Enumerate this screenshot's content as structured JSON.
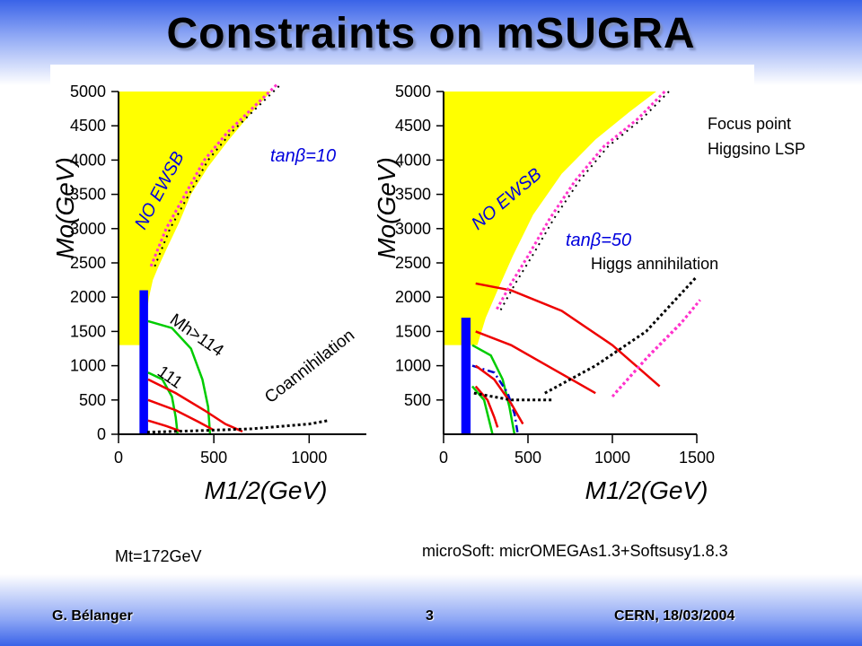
{
  "slide": {
    "title": "Constraints on mSUGRA",
    "mt_note": "Mt=172GeV",
    "software_note": "microSoft: micrOMEGAs1.3+Softsusy1.8.3",
    "footer_author": "G. Bélanger",
    "footer_page": "3",
    "footer_venue": "CERN, 18/03/2004"
  },
  "annotations": {
    "focus_point": "Focus point",
    "higgsino": "Higgsino LSP",
    "higgs_annihilation": "Higgs annihilation",
    "coannihilation": "Coannihilation",
    "mh114": "Mh>114",
    "mh111": "111"
  },
  "colors": {
    "no_ewsb": "#ffff00",
    "lep_excluded": "#0000ff",
    "higgs_limit": "#00cc00",
    "relic_contour": "#ee0000",
    "dm_band_magenta": "#ff33cc",
    "dm_band_black": "#000000",
    "blue_dashdot": "#0000cc"
  },
  "chart_data": [
    {
      "type": "scatter",
      "xlabel": "M1/2(GeV)",
      "ylabel": "Mo(GeV)",
      "xlim": [
        0,
        1300
      ],
      "ylim": [
        0,
        5000
      ],
      "xticks": [
        "0",
        "500",
        "1000"
      ],
      "yticks": [
        "0",
        "500",
        "1000",
        "1500",
        "2000",
        "2500",
        "3000",
        "3500",
        "4000",
        "4500",
        "5000"
      ],
      "labels": {
        "region": "NO EWSB",
        "tanb": "tanβ=10"
      },
      "no_ewsb_boundary": [
        [
          0,
          5000
        ],
        [
          800,
          5000
        ],
        [
          700,
          4700
        ],
        [
          580,
          4300
        ],
        [
          470,
          3900
        ],
        [
          380,
          3500
        ],
        [
          320,
          3100
        ],
        [
          260,
          2750
        ],
        [
          210,
          2450
        ],
        [
          180,
          2250
        ],
        [
          160,
          2000
        ],
        [
          145,
          1700
        ],
        [
          130,
          1300
        ],
        [
          0,
          1300
        ]
      ],
      "lep_excluded": [
        [
          110,
          0
        ],
        [
          155,
          0
        ],
        [
          155,
          2100
        ],
        [
          110,
          2100
        ]
      ],
      "higgs_contours": [
        {
          "name": "Mh>114",
          "points": [
            [
              155,
              1650
            ],
            [
              280,
              1550
            ],
            [
              380,
              1250
            ],
            [
              440,
              800
            ],
            [
              470,
              400
            ],
            [
              480,
              0
            ]
          ]
        },
        {
          "name": "111",
          "points": [
            [
              155,
              900
            ],
            [
              230,
              800
            ],
            [
              280,
              550
            ],
            [
              300,
              250
            ],
            [
              310,
              0
            ]
          ]
        }
      ],
      "relic_contours": [
        {
          "points": [
            [
              155,
              800
            ],
            [
              300,
              600
            ],
            [
              450,
              350
            ],
            [
              560,
              150
            ],
            [
              650,
              40
            ]
          ]
        },
        {
          "points": [
            [
              155,
              500
            ],
            [
              300,
              350
            ],
            [
              420,
              180
            ],
            [
              500,
              60
            ]
          ]
        },
        {
          "points": [
            [
              155,
              200
            ],
            [
              250,
              120
            ],
            [
              330,
              40
            ]
          ]
        }
      ],
      "dm_band": [
        [
          170,
          2450
        ],
        [
          250,
          3000
        ],
        [
          350,
          3500
        ],
        [
          450,
          4000
        ],
        [
          570,
          4400
        ],
        [
          700,
          4750
        ],
        [
          830,
          5100
        ]
      ],
      "coannihilation_band": [
        [
          150,
          30
        ],
        [
          400,
          50
        ],
        [
          700,
          80
        ],
        [
          1000,
          150
        ],
        [
          1100,
          200
        ]
      ]
    },
    {
      "type": "scatter",
      "xlabel": "M1/2(GeV)",
      "ylabel": "Mo(GeV)",
      "xlim": [
        0,
        1500
      ],
      "ylim": [
        0,
        5000
      ],
      "xticks": [
        "0",
        "500",
        "1000",
        "1500"
      ],
      "yticks": [
        "500",
        "1000",
        "1500",
        "2000",
        "2500",
        "3000",
        "3500",
        "4000",
        "4500",
        "5000"
      ],
      "labels": {
        "region": "NO EWSB",
        "tanb": "tanβ=50"
      },
      "no_ewsb_boundary": [
        [
          0,
          5000
        ],
        [
          1260,
          5000
        ],
        [
          1100,
          4700
        ],
        [
          900,
          4300
        ],
        [
          700,
          3800
        ],
        [
          530,
          3200
        ],
        [
          410,
          2600
        ],
        [
          320,
          2100
        ],
        [
          250,
          1700
        ],
        [
          200,
          1300
        ],
        [
          0,
          1300
        ]
      ],
      "lep_excluded": [
        [
          105,
          0
        ],
        [
          160,
          0
        ],
        [
          160,
          1700
        ],
        [
          105,
          1700
        ]
      ],
      "higgs_contours": [
        {
          "name": "green",
          "points": [
            [
              170,
              1300
            ],
            [
              280,
              1150
            ],
            [
              350,
              800
            ],
            [
              390,
              400
            ],
            [
              420,
              0
            ]
          ]
        },
        {
          "name": "green-inner",
          "points": [
            [
              170,
              700
            ],
            [
              240,
              500
            ],
            [
              270,
              200
            ],
            [
              290,
              0
            ]
          ]
        },
        {
          "name": "blue-dashdot",
          "points": [
            [
              170,
              1000
            ],
            [
              300,
              900
            ],
            [
              380,
              600
            ],
            [
              420,
              300
            ],
            [
              440,
              0
            ]
          ]
        }
      ],
      "relic_contours": [
        {
          "points": [
            [
              190,
              2200
            ],
            [
              400,
              2100
            ],
            [
              700,
              1800
            ],
            [
              1000,
              1300
            ],
            [
              1280,
              700
            ]
          ]
        },
        {
          "points": [
            [
              190,
              1500
            ],
            [
              400,
              1300
            ],
            [
              650,
              950
            ],
            [
              900,
              600
            ]
          ]
        },
        {
          "points": [
            [
              190,
              1000
            ],
            [
              300,
              800
            ],
            [
              400,
              450
            ],
            [
              470,
              150
            ]
          ]
        },
        {
          "points": [
            [
              190,
              700
            ],
            [
              260,
              500
            ],
            [
              300,
              250
            ],
            [
              320,
              100
            ]
          ]
        }
      ],
      "dm_band_magenta": [
        [
          1310,
          5000
        ],
        [
          1150,
          4600
        ],
        [
          950,
          4200
        ],
        [
          780,
          3700
        ],
        [
          630,
          3150
        ],
        [
          500,
          2600
        ],
        [
          400,
          2200
        ],
        [
          310,
          1800
        ]
      ],
      "higgs_funnel_magenta": [
        [
          1000,
          550
        ],
        [
          1200,
          1100
        ],
        [
          1400,
          1600
        ],
        [
          1500,
          1900
        ]
      ],
      "higgs_funnel_black": [
        [
          600,
          600
        ],
        [
          900,
          1000
        ],
        [
          1200,
          1500
        ],
        [
          1500,
          2300
        ]
      ],
      "lower_dotted": [
        [
          180,
          600
        ],
        [
          400,
          500
        ],
        [
          650,
          500
        ]
      ]
    }
  ]
}
